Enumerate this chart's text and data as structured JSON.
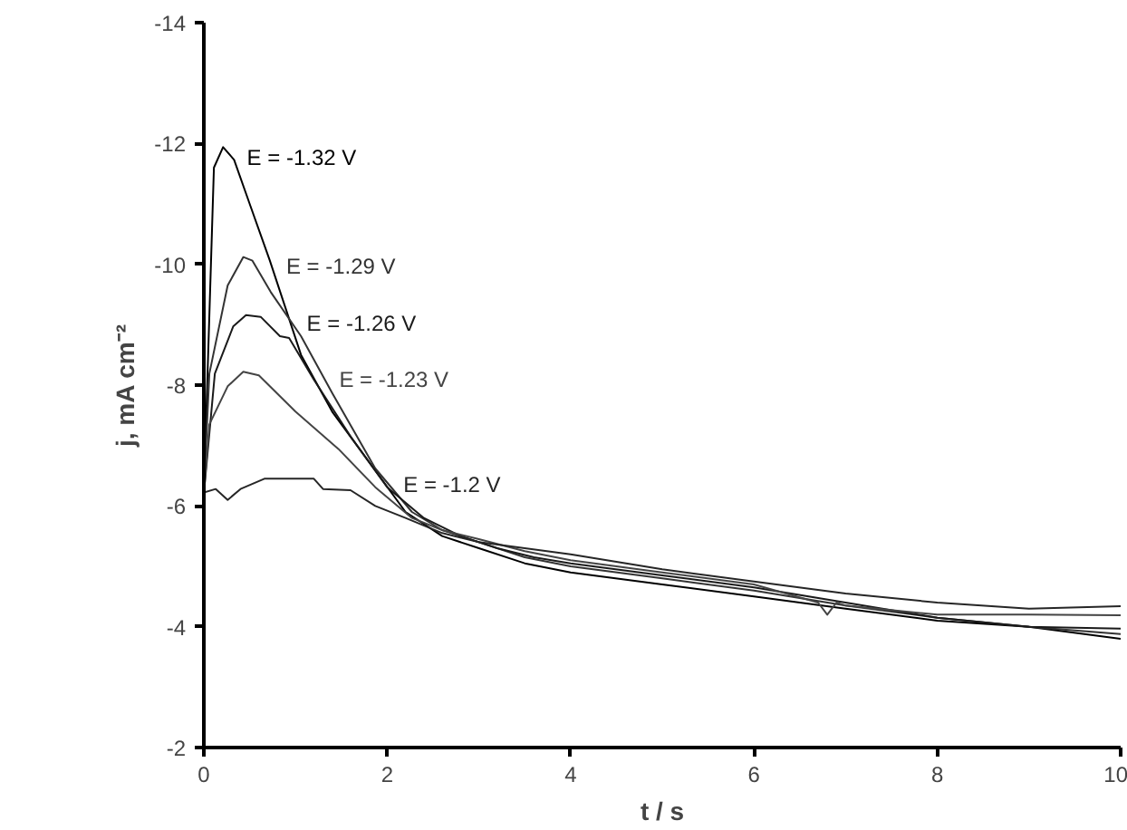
{
  "chart_data": {
    "type": "line",
    "xlabel": "t / s",
    "ylabel": "j, mA cm⁻²",
    "xlim": [
      0,
      10
    ],
    "ylim": [
      -2,
      -14
    ],
    "xticks": [
      0,
      2,
      4,
      6,
      8,
      10
    ],
    "yticks": [
      -2,
      -4,
      -6,
      -8,
      -10,
      -12,
      -14
    ],
    "grid": false,
    "legend": false,
    "marker": "none",
    "line_style": "solid",
    "series": [
      {
        "name": "E = -1.32 V",
        "color": "#000000",
        "x": [
          0,
          0.11,
          0.21,
          0.33,
          0.5,
          0.72,
          1.06,
          1.4,
          1.8,
          2.2,
          2.6,
          3,
          3.5,
          4,
          5,
          6,
          7,
          8,
          9,
          10
        ],
        "values": [
          -6.2,
          -11.6,
          -11.94,
          -11.73,
          -11.0,
          -10.06,
          -8.5,
          -7.56,
          -6.73,
          -5.9,
          -5.5,
          -5.3,
          -5.05,
          -4.9,
          -4.7,
          -4.5,
          -4.3,
          -4.1,
          -4.0,
          -3.8
        ]
      },
      {
        "name": "E = -1.29 V",
        "color": "#333333",
        "x": [
          0,
          0.06,
          0.26,
          0.43,
          0.53,
          0.73,
          1.06,
          1.4,
          1.87,
          2.27,
          2.6,
          3,
          3.5,
          4,
          5,
          6,
          7,
          8,
          9,
          10
        ],
        "values": [
          -6.2,
          -8.19,
          -9.65,
          -10.12,
          -10.06,
          -9.54,
          -8.81,
          -7.87,
          -6.62,
          -5.9,
          -5.6,
          -5.4,
          -5.15,
          -5.0,
          -4.8,
          -4.6,
          -4.35,
          -4.15,
          -4.0,
          -3.88
        ]
      },
      {
        "name": "E = -1.26 V",
        "color": "#1a1a1a",
        "x": [
          0,
          0.12,
          0.32,
          0.46,
          0.62,
          0.83,
          0.93,
          1.2,
          1.6,
          2.0,
          2.4,
          2.8,
          3.2,
          3.6,
          4,
          5,
          6,
          7,
          8,
          9,
          10
        ],
        "values": [
          -6.2,
          -8.19,
          -8.97,
          -9.16,
          -9.13,
          -8.81,
          -8.78,
          -8.09,
          -7.15,
          -6.31,
          -5.8,
          -5.5,
          -5.3,
          -5.15,
          -5.05,
          -4.85,
          -4.65,
          -4.4,
          -4.15,
          -4.0,
          -3.97
        ]
      },
      {
        "name": "E = -1.23 V",
        "color": "#444444",
        "x": [
          0,
          0.06,
          0.26,
          0.43,
          0.6,
          1.0,
          1.47,
          1.87,
          2.27,
          2.6,
          3,
          3.5,
          4,
          5,
          6,
          6.7,
          6.8,
          6.9,
          7,
          8,
          9,
          10
        ],
        "values": [
          -6.2,
          -7.35,
          -7.98,
          -8.22,
          -8.16,
          -7.56,
          -6.94,
          -6.31,
          -5.8,
          -5.6,
          -5.45,
          -5.25,
          -5.1,
          -4.9,
          -4.7,
          -4.4,
          -4.2,
          -4.4,
          -4.35,
          -4.2,
          -4.2,
          -4.19
        ]
      },
      {
        "name": "E = -1.2 V",
        "color": "#262626",
        "x": [
          0,
          0.13,
          0.26,
          0.4,
          0.66,
          1.2,
          1.3,
          1.6,
          1.87,
          2.2,
          2.6,
          3,
          3.5,
          4,
          5,
          6,
          7,
          8,
          9,
          10
        ],
        "values": [
          -6.22,
          -6.28,
          -6.1,
          -6.28,
          -6.45,
          -6.45,
          -6.28,
          -6.26,
          -6.0,
          -5.8,
          -5.55,
          -5.4,
          -5.3,
          -5.2,
          -4.95,
          -4.75,
          -4.55,
          -4.4,
          -4.3,
          -4.34
        ]
      }
    ]
  }
}
